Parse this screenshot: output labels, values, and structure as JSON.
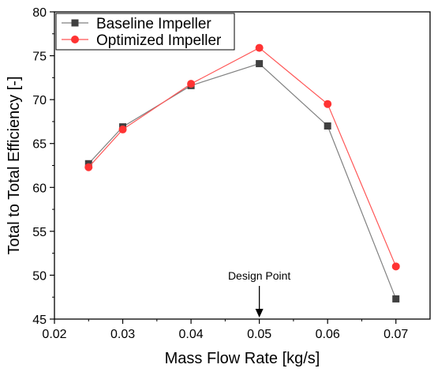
{
  "chart_data": {
    "type": "line",
    "title": "",
    "xlabel": "Mass Flow Rate [kg/s]",
    "ylabel": "Total to Total Efficiency [-]",
    "xlim": [
      0.02,
      0.075
    ],
    "ylim": [
      45,
      80
    ],
    "x_ticks": [
      0.02,
      0.03,
      0.04,
      0.05,
      0.06,
      0.07
    ],
    "x_tick_labels": [
      "0.02",
      "0.03",
      "0.04",
      "0.05",
      "0.06",
      "0.07"
    ],
    "y_ticks": [
      45,
      50,
      55,
      60,
      65,
      70,
      75,
      80
    ],
    "y_tick_labels": [
      "45",
      "50",
      "55",
      "60",
      "65",
      "70",
      "75",
      "80"
    ],
    "grid": false,
    "legend_position": "top-left",
    "x": [
      0.025,
      0.03,
      0.04,
      0.05,
      0.06,
      0.07
    ],
    "series": [
      {
        "name": "Baseline Impeller",
        "marker": "square",
        "color": "#404040",
        "line_color": "#808080",
        "values": [
          62.7,
          66.9,
          71.6,
          74.1,
          67.0,
          47.3
        ]
      },
      {
        "name": "Optimized Impeller",
        "marker": "circle",
        "color": "#ff3333",
        "line_color": "#ff5555",
        "values": [
          62.3,
          66.6,
          71.8,
          75.9,
          69.5,
          51.0
        ]
      }
    ],
    "annotations": [
      {
        "text": "Design Point",
        "x": 0.05,
        "arrow": "down"
      }
    ]
  }
}
